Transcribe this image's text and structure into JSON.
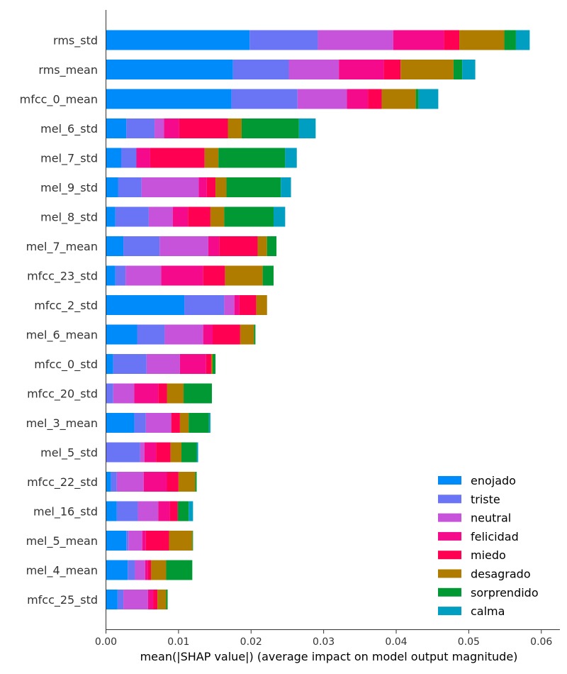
{
  "chart_data": {
    "type": "bar",
    "orientation": "horizontal",
    "stacked": true,
    "title": "",
    "xlabel": "mean(|SHAP value|) (average impact on model output magnitude)",
    "ylabel": "",
    "xlim": [
      0,
      0.061
    ],
    "xticks": [
      "0.00",
      "0.01",
      "0.02",
      "0.03",
      "0.04",
      "0.05",
      "0.06"
    ],
    "xtick_values": [
      0,
      0.01,
      0.02,
      0.03,
      0.04,
      0.05,
      0.06
    ],
    "grid": false,
    "legend_position": "bottom-right",
    "categories": [
      "rms_std",
      "rms_mean",
      "mfcc_0_mean",
      "mel_6_std",
      "mel_7_std",
      "mel_9_std",
      "mel_8_std",
      "mel_7_mean",
      "mfcc_23_std",
      "mfcc_2_std",
      "mel_6_mean",
      "mfcc_0_std",
      "mfcc_20_std",
      "mel_3_mean",
      "mel_5_std",
      "mfcc_22_std",
      "mel_16_std",
      "mel_5_mean",
      "mel_4_mean",
      "mfcc_25_std"
    ],
    "series": [
      {
        "name": "enojado",
        "color": "#008bfb",
        "values": [
          0.0198,
          0.0175,
          0.0173,
          0.0028,
          0.0021,
          0.0017,
          0.0013,
          0.0024,
          0.0013,
          0.0108,
          0.0043,
          0.001,
          0.0,
          0.0039,
          0.0,
          0.0007,
          0.0015,
          0.0028,
          0.003,
          0.0016
        ]
      },
      {
        "name": "triste",
        "color": "#6a75f5",
        "values": [
          0.0094,
          0.0077,
          0.0091,
          0.0039,
          0.0021,
          0.0032,
          0.0046,
          0.005,
          0.0014,
          0.0055,
          0.0038,
          0.0046,
          0.001,
          0.0016,
          0.0047,
          0.0008,
          0.0029,
          0.0003,
          0.001,
          0.0008
        ]
      },
      {
        "name": "neutral",
        "color": "#c653d9",
        "values": [
          0.0104,
          0.0069,
          0.0068,
          0.0013,
          0.0,
          0.0079,
          0.0033,
          0.0067,
          0.0049,
          0.0014,
          0.0053,
          0.0046,
          0.0029,
          0.0035,
          0.0006,
          0.0037,
          0.0028,
          0.0019,
          0.0014,
          0.0034
        ]
      },
      {
        "name": "felicidad",
        "color": "#f50a8c",
        "values": [
          0.007,
          0.0062,
          0.0029,
          0.0021,
          0.0019,
          0.0011,
          0.0021,
          0.0015,
          0.0058,
          0.0007,
          0.0013,
          0.0036,
          0.0033,
          0.0,
          0.0016,
          0.0032,
          0.0016,
          0.0005,
          0.0004,
          0.0007
        ]
      },
      {
        "name": "miedo",
        "color": "#ff0052",
        "values": [
          0.0021,
          0.0023,
          0.0019,
          0.0067,
          0.0075,
          0.0012,
          0.0031,
          0.0053,
          0.003,
          0.0023,
          0.0038,
          0.0007,
          0.0012,
          0.0012,
          0.002,
          0.0016,
          0.0011,
          0.0032,
          0.0004,
          0.0006
        ]
      },
      {
        "name": "desagrado",
        "color": "#b07c00",
        "values": [
          0.0062,
          0.0073,
          0.0047,
          0.0019,
          0.0019,
          0.0015,
          0.0019,
          0.0013,
          0.0052,
          0.0015,
          0.0019,
          0.0002,
          0.0023,
          0.0012,
          0.0015,
          0.0023,
          0.0,
          0.0032,
          0.0021,
          0.0012
        ]
      },
      {
        "name": "sorprendido",
        "color": "#009933",
        "values": [
          0.0016,
          0.0012,
          0.0004,
          0.0079,
          0.0092,
          0.0075,
          0.0068,
          0.0013,
          0.0015,
          0.0,
          0.0002,
          0.0004,
          0.0039,
          0.0028,
          0.0021,
          0.0002,
          0.0015,
          0.0001,
          0.0036,
          0.0002
        ]
      },
      {
        "name": "calma",
        "color": "#009fc2",
        "values": [
          0.0019,
          0.0018,
          0.0027,
          0.0023,
          0.0016,
          0.0014,
          0.0016,
          0.0,
          0.0,
          0.0,
          0.0,
          0.0,
          0.0,
          0.0002,
          0.0002,
          0.0,
          0.0006,
          0.0,
          0.0,
          0.0
        ]
      }
    ]
  }
}
